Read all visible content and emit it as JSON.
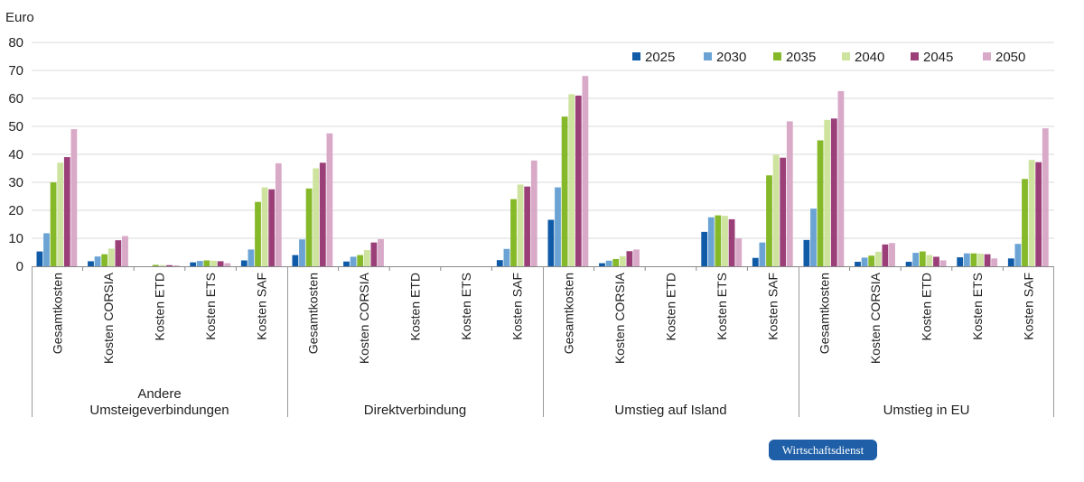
{
  "chart_data": {
    "type": "bar",
    "ylabel": "Euro",
    "ylim": [
      0,
      80
    ],
    "yticks": [
      0,
      10,
      20,
      30,
      40,
      50,
      60,
      70,
      80
    ],
    "grid": "horizontal",
    "legend_position": "top-right",
    "categories": [
      "Gesamtkosten",
      "Kosten CORSIA",
      "Kosten ETD",
      "Kosten ETS",
      "Kosten SAF"
    ],
    "groups": [
      {
        "label_lines": [
          "Andere",
          "Umsteigeverbindungen"
        ],
        "values": [
          [
            5.3,
            11.8,
            30.0,
            37.0,
            39.0,
            49.0
          ],
          [
            1.8,
            3.5,
            4.3,
            6.3,
            9.3,
            10.8
          ],
          [
            0.0,
            0.0,
            0.5,
            0.4,
            0.4,
            0.3
          ],
          [
            1.4,
            1.9,
            2.1,
            2.0,
            1.8,
            1.1
          ],
          [
            2.1,
            6.0,
            23.0,
            28.2,
            27.5,
            36.8
          ]
        ]
      },
      {
        "label_lines": [
          "Direktverbindung"
        ],
        "values": [
          [
            4.0,
            9.6,
            27.8,
            35.0,
            37.0,
            47.5
          ],
          [
            1.7,
            3.4,
            4.0,
            5.8,
            8.5,
            9.7
          ],
          [
            0.0,
            0.0,
            0.0,
            0.0,
            0.0,
            0.0
          ],
          [
            0.0,
            0.0,
            0.0,
            0.0,
            0.0,
            0.0
          ],
          [
            2.2,
            6.2,
            24.0,
            29.2,
            28.5,
            37.8
          ]
        ]
      },
      {
        "label_lines": [
          "Umstieg auf Island"
        ],
        "values": [
          [
            16.6,
            28.2,
            53.5,
            61.5,
            61.0,
            68.0
          ],
          [
            1.1,
            2.0,
            2.6,
            3.6,
            5.4,
            6.0
          ],
          [
            0.0,
            0.0,
            0.0,
            0.0,
            0.0,
            0.0
          ],
          [
            12.3,
            17.5,
            18.2,
            18.0,
            16.8,
            10.0
          ],
          [
            3.0,
            8.5,
            32.5,
            39.8,
            38.8,
            51.8
          ]
        ]
      },
      {
        "label_lines": [
          "Umstieg in EU"
        ],
        "values": [
          [
            9.4,
            20.6,
            45.0,
            52.3,
            52.8,
            62.6
          ],
          [
            1.6,
            3.1,
            3.8,
            5.2,
            7.8,
            8.3
          ],
          [
            1.6,
            4.8,
            5.3,
            4.0,
            3.4,
            2.1
          ],
          [
            3.2,
            4.6,
            4.6,
            4.5,
            4.3,
            2.8
          ],
          [
            2.8,
            8.0,
            31.2,
            38.0,
            37.2,
            49.3
          ]
        ]
      }
    ],
    "series": [
      {
        "name": "2025",
        "color": "#0f5ba8"
      },
      {
        "name": "2030",
        "color": "#6aa3d4"
      },
      {
        "name": "2035",
        "color": "#86b929"
      },
      {
        "name": "2040",
        "color": "#cde39e"
      },
      {
        "name": "2045",
        "color": "#9b3f79"
      },
      {
        "name": "2050",
        "color": "#d9a9c8"
      }
    ]
  },
  "publisher": "Wirtschaftsdienst"
}
